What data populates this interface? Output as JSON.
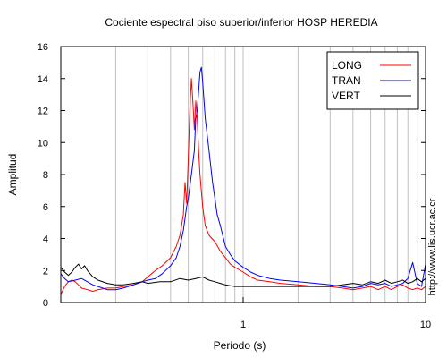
{
  "chart_data": {
    "type": "line",
    "title": "Cociente espectral piso superior/inferior  HOSP HEREDIA",
    "xlabel": "Periodo (s)",
    "ylabel": "Amplitud",
    "xscale": "log",
    "xlim": [
      0.1,
      10
    ],
    "ylim": [
      0,
      16
    ],
    "x_ticks": [
      {
        "value": 1,
        "label": "1"
      },
      {
        "value": 10,
        "label": "10"
      }
    ],
    "y_ticks": [
      0,
      2,
      4,
      6,
      8,
      10,
      12,
      14,
      16
    ],
    "grid": "vertical log gridlines",
    "legend_position": "top-right",
    "side_note": "http://www.lis.ucr.ac.cr",
    "series": [
      {
        "name": "LONG",
        "color": "#ff0000",
        "points": [
          [
            0.1,
            0.5
          ],
          [
            0.105,
            1.0
          ],
          [
            0.11,
            1.3
          ],
          [
            0.115,
            1.4
          ],
          [
            0.12,
            1.3
          ],
          [
            0.125,
            1.1
          ],
          [
            0.13,
            0.9
          ],
          [
            0.14,
            0.8
          ],
          [
            0.15,
            0.7
          ],
          [
            0.16,
            0.8
          ],
          [
            0.18,
            0.9
          ],
          [
            0.2,
            0.9
          ],
          [
            0.22,
            1.0
          ],
          [
            0.25,
            1.1
          ],
          [
            0.28,
            1.3
          ],
          [
            0.3,
            1.6
          ],
          [
            0.33,
            2.0
          ],
          [
            0.36,
            2.3
          ],
          [
            0.4,
            2.8
          ],
          [
            0.43,
            3.5
          ],
          [
            0.45,
            4.2
          ],
          [
            0.47,
            5.5
          ],
          [
            0.48,
            7.5
          ],
          [
            0.49,
            6.2
          ],
          [
            0.5,
            9.0
          ],
          [
            0.51,
            12.0
          ],
          [
            0.52,
            14.0
          ],
          [
            0.53,
            12.5
          ],
          [
            0.54,
            10.8
          ],
          [
            0.55,
            12.6
          ],
          [
            0.56,
            11.5
          ],
          [
            0.57,
            9.5
          ],
          [
            0.58,
            8.0
          ],
          [
            0.6,
            6.0
          ],
          [
            0.62,
            4.8
          ],
          [
            0.65,
            4.2
          ],
          [
            0.7,
            3.8
          ],
          [
            0.75,
            3.2
          ],
          [
            0.8,
            2.8
          ],
          [
            0.85,
            2.4
          ],
          [
            0.9,
            2.2
          ],
          [
            1.0,
            1.9
          ],
          [
            1.1,
            1.6
          ],
          [
            1.2,
            1.4
          ],
          [
            1.4,
            1.3
          ],
          [
            1.6,
            1.2
          ],
          [
            2.0,
            1.1
          ],
          [
            2.5,
            1.0
          ],
          [
            3.0,
            1.0
          ],
          [
            3.5,
            0.9
          ],
          [
            4.0,
            0.8
          ],
          [
            4.5,
            0.9
          ],
          [
            5.0,
            1.0
          ],
          [
            5.5,
            0.8
          ],
          [
            6.0,
            1.0
          ],
          [
            6.5,
            0.8
          ],
          [
            7.0,
            1.0
          ],
          [
            7.5,
            1.1
          ],
          [
            8.0,
            0.9
          ],
          [
            8.5,
            0.8
          ],
          [
            9.0,
            0.9
          ],
          [
            9.5,
            0.8
          ],
          [
            10.0,
            1.0
          ]
        ]
      },
      {
        "name": "TRAN",
        "color": "#0000ff",
        "points": [
          [
            0.1,
            1.8
          ],
          [
            0.105,
            1.5
          ],
          [
            0.11,
            1.3
          ],
          [
            0.12,
            1.4
          ],
          [
            0.13,
            1.5
          ],
          [
            0.14,
            1.3
          ],
          [
            0.15,
            1.1
          ],
          [
            0.16,
            1.0
          ],
          [
            0.18,
            0.8
          ],
          [
            0.2,
            0.8
          ],
          [
            0.22,
            0.9
          ],
          [
            0.25,
            1.1
          ],
          [
            0.28,
            1.3
          ],
          [
            0.3,
            1.4
          ],
          [
            0.33,
            1.5
          ],
          [
            0.36,
            1.8
          ],
          [
            0.4,
            2.3
          ],
          [
            0.43,
            2.8
          ],
          [
            0.45,
            3.5
          ],
          [
            0.47,
            4.5
          ],
          [
            0.49,
            6.0
          ],
          [
            0.5,
            6.5
          ],
          [
            0.52,
            8.0
          ],
          [
            0.54,
            9.5
          ],
          [
            0.55,
            11.5
          ],
          [
            0.56,
            12.0
          ],
          [
            0.57,
            13.2
          ],
          [
            0.58,
            14.4
          ],
          [
            0.59,
            14.7
          ],
          [
            0.6,
            13.8
          ],
          [
            0.62,
            11.5
          ],
          [
            0.65,
            9.5
          ],
          [
            0.68,
            7.5
          ],
          [
            0.7,
            6.5
          ],
          [
            0.72,
            5.5
          ],
          [
            0.75,
            4.8
          ],
          [
            0.78,
            4.0
          ],
          [
            0.8,
            3.5
          ],
          [
            0.85,
            3.0
          ],
          [
            0.9,
            2.6
          ],
          [
            1.0,
            2.2
          ],
          [
            1.1,
            1.9
          ],
          [
            1.2,
            1.7
          ],
          [
            1.4,
            1.5
          ],
          [
            1.6,
            1.4
          ],
          [
            2.0,
            1.3
          ],
          [
            2.5,
            1.2
          ],
          [
            3.0,
            1.1
          ],
          [
            3.5,
            1.0
          ],
          [
            4.0,
            0.9
          ],
          [
            4.5,
            1.0
          ],
          [
            5.0,
            1.2
          ],
          [
            5.5,
            1.1
          ],
          [
            6.0,
            1.2
          ],
          [
            6.5,
            1.0
          ],
          [
            7.0,
            1.1
          ],
          [
            7.5,
            1.2
          ],
          [
            8.0,
            1.5
          ],
          [
            8.5,
            2.5
          ],
          [
            9.0,
            1.2
          ],
          [
            9.5,
            1.0
          ],
          [
            10.0,
            2.4
          ]
        ]
      },
      {
        "name": "VERT",
        "color": "#000000",
        "points": [
          [
            0.1,
            2.2
          ],
          [
            0.105,
            1.9
          ],
          [
            0.11,
            1.7
          ],
          [
            0.115,
            1.9
          ],
          [
            0.12,
            2.2
          ],
          [
            0.125,
            2.4
          ],
          [
            0.13,
            2.1
          ],
          [
            0.135,
            2.3
          ],
          [
            0.14,
            2.0
          ],
          [
            0.15,
            1.6
          ],
          [
            0.16,
            1.4
          ],
          [
            0.18,
            1.2
          ],
          [
            0.2,
            1.1
          ],
          [
            0.22,
            1.1
          ],
          [
            0.25,
            1.2
          ],
          [
            0.28,
            1.3
          ],
          [
            0.3,
            1.2
          ],
          [
            0.35,
            1.3
          ],
          [
            0.4,
            1.3
          ],
          [
            0.45,
            1.5
          ],
          [
            0.5,
            1.4
          ],
          [
            0.55,
            1.5
          ],
          [
            0.6,
            1.6
          ],
          [
            0.65,
            1.4
          ],
          [
            0.7,
            1.3
          ],
          [
            0.75,
            1.2
          ],
          [
            0.8,
            1.1
          ],
          [
            0.9,
            1.0
          ],
          [
            1.0,
            1.0
          ],
          [
            1.2,
            1.0
          ],
          [
            1.5,
            1.0
          ],
          [
            2.0,
            1.0
          ],
          [
            2.5,
            1.0
          ],
          [
            3.0,
            1.0
          ],
          [
            3.5,
            1.1
          ],
          [
            4.0,
            1.2
          ],
          [
            4.5,
            1.1
          ],
          [
            5.0,
            1.3
          ],
          [
            5.5,
            1.2
          ],
          [
            6.0,
            1.4
          ],
          [
            6.5,
            1.2
          ],
          [
            7.0,
            1.3
          ],
          [
            7.5,
            1.4
          ],
          [
            8.0,
            1.2
          ],
          [
            8.5,
            1.3
          ],
          [
            9.0,
            1.5
          ],
          [
            9.5,
            1.3
          ],
          [
            10.0,
            1.5
          ]
        ]
      }
    ]
  }
}
